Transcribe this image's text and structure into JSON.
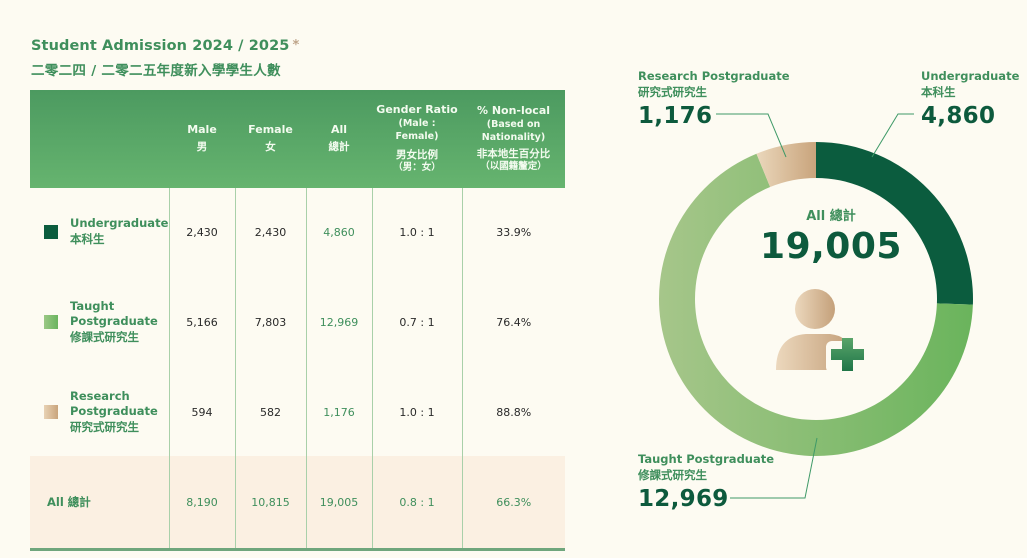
{
  "title": {
    "en": "Student Admission 2024 / 2025",
    "asterisk": "*",
    "zh": "二零二四 / 二零二五年度新入學學生人數"
  },
  "table": {
    "headers": [
      {
        "en": "",
        "zh": ""
      },
      {
        "en": "Male",
        "zh": "男"
      },
      {
        "en": "Female",
        "zh": "女"
      },
      {
        "en": "All",
        "zh": "總計"
      },
      {
        "en": "Gender Ratio",
        "sub": "(Male : Female)",
        "zh": "男女比例",
        "zh_sub": "（男：女）"
      },
      {
        "en": "% Non-local",
        "sub": "(Based on Nationality)",
        "zh": "非本地生百分比",
        "zh_sub": "（以國籍釐定）"
      }
    ],
    "rows": [
      {
        "label_en": "Undergraduate",
        "label_zh": "本科生",
        "male": "2,430",
        "female": "2,430",
        "all": "4,860",
        "ratio": "1.0 : 1",
        "nonlocal": "33.9%",
        "color": "#0b5c3e"
      },
      {
        "label_en": "Taught Postgraduate",
        "label_zh": "修課式研究生",
        "male": "5,166",
        "female": "7,803",
        "all": "12,969",
        "ratio": "0.7 : 1",
        "nonlocal": "76.4%",
        "color": "#7cbb6c"
      },
      {
        "label_en": "Research Postgraduate",
        "label_zh": "研究式研究生",
        "male": "594",
        "female": "582",
        "all": "1,176",
        "ratio": "1.0 : 1",
        "nonlocal": "88.8%",
        "color": "#d6b894"
      }
    ],
    "total": {
      "label": "All 總計",
      "male": "8,190",
      "female": "10,815",
      "all": "19,005",
      "ratio": "0.8 : 1",
      "nonlocal": "66.3%"
    }
  },
  "chart_data": {
    "type": "pie",
    "variant": "donut",
    "title": "All 總計",
    "center_value": "19,005",
    "center_icon": "add-person-icon",
    "categories": [
      "Undergraduate 本科生",
      "Taught Postgraduate 修課式研究生",
      "Research Postgraduate 研究式研究生"
    ],
    "values": [
      4860,
      12969,
      1176
    ],
    "value_labels": [
      "4,860",
      "12,969",
      "1,176"
    ],
    "colors": [
      "#0b5c3e",
      "#7cbb6c",
      "#d6b894"
    ],
    "start_angle": "12 o'clock, clockwise",
    "labels": [
      {
        "en": "Undergraduate",
        "zh": "本科生",
        "value": "4,860",
        "placement": "top-right"
      },
      {
        "en": "Taught Postgraduate",
        "zh": "修課式研究生",
        "value": "12,969",
        "placement": "bottom-left"
      },
      {
        "en": "Research Postgraduate",
        "zh": "研究式研究生",
        "value": "1,176",
        "placement": "top-left"
      }
    ]
  }
}
